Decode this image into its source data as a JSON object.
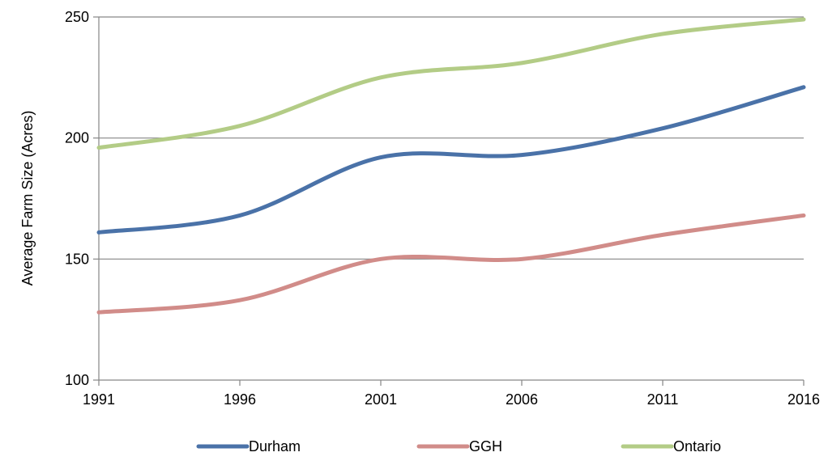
{
  "chart_data": {
    "type": "line",
    "title": "",
    "xlabel": "",
    "ylabel": "Average Farm Size (Acres)",
    "x": [
      1991,
      1996,
      2001,
      2006,
      2011,
      2016
    ],
    "xticks": [
      "1991",
      "1996",
      "2001",
      "2006",
      "2011",
      "2016"
    ],
    "yticks": [
      "100",
      "150",
      "200",
      "250"
    ],
    "ylim": [
      100,
      250
    ],
    "grid": "horizontal",
    "legend_position": "bottom",
    "series": [
      {
        "name": "Durham",
        "color": "#4a72a8",
        "values": [
          161,
          168,
          192,
          193,
          204,
          221
        ]
      },
      {
        "name": "GGH",
        "color": "#d18c89",
        "values": [
          128,
          133,
          150,
          150,
          160,
          168
        ]
      },
      {
        "name": "Ontario",
        "color": "#b3cc86",
        "values": [
          196,
          205,
          225,
          231,
          243,
          249
        ]
      }
    ]
  }
}
